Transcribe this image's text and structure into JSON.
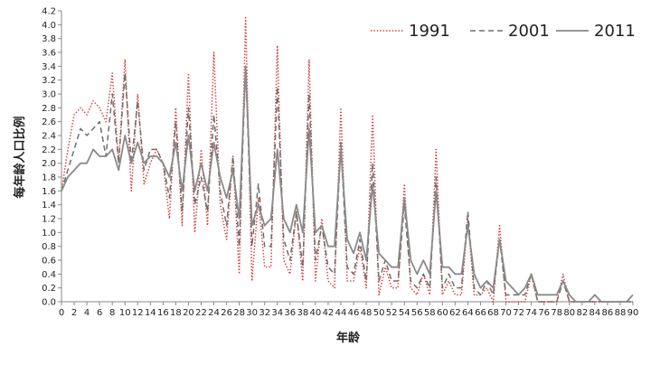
{
  "chart_data": {
    "type": "line",
    "title": "",
    "xlabel": "年龄",
    "ylabel": "每年龄人口比例",
    "xlim": [
      0,
      90
    ],
    "ylim": [
      0,
      4.2
    ],
    "x": [
      0,
      1,
      2,
      3,
      4,
      5,
      6,
      7,
      8,
      9,
      10,
      11,
      12,
      13,
      14,
      15,
      16,
      17,
      18,
      19,
      20,
      21,
      22,
      23,
      24,
      25,
      26,
      27,
      28,
      29,
      30,
      31,
      32,
      33,
      34,
      35,
      36,
      37,
      38,
      39,
      40,
      41,
      42,
      43,
      44,
      45,
      46,
      47,
      48,
      49,
      50,
      51,
      52,
      53,
      54,
      55,
      56,
      57,
      58,
      59,
      60,
      61,
      62,
      63,
      64,
      65,
      66,
      67,
      68,
      69,
      70,
      71,
      72,
      73,
      74,
      75,
      76,
      77,
      78,
      79,
      80,
      81,
      82,
      83,
      84,
      85,
      86,
      87,
      88,
      89,
      90
    ],
    "x_tick_labels": [
      "0",
      "2",
      "4",
      "6",
      "8",
      "10",
      "12",
      "14",
      "16",
      "18",
      "20",
      "22",
      "24",
      "26",
      "28",
      "30",
      "32",
      "34",
      "36",
      "38",
      "40",
      "42",
      "44",
      "46",
      "48",
      "50",
      "52",
      "54",
      "56",
      "58",
      "60",
      "62",
      "64",
      "66",
      "68",
      "70",
      "72",
      "74",
      "76",
      "78",
      "80",
      "82",
      "84",
      "86",
      "88",
      "90"
    ],
    "y_tick_labels": [
      "0.0",
      "0.2",
      "0.4",
      "0.6",
      "0.8",
      "1.0",
      "1.2",
      "1.4",
      "1.6",
      "1.8",
      "2.0",
      "2.2",
      "2.4",
      "2.6",
      "2.8",
      "3.0",
      "3.2",
      "3.4",
      "3.6",
      "3.8",
      "4.0",
      "4.2"
    ],
    "legend_position": "top-right",
    "series": [
      {
        "name": "1991",
        "color": "#d93a3a",
        "dash": "dotted",
        "values": [
          1.6,
          2.2,
          2.7,
          2.8,
          2.7,
          2.9,
          2.8,
          2.6,
          3.3,
          2.0,
          3.5,
          1.6,
          3.0,
          1.7,
          2.0,
          2.2,
          2.0,
          1.2,
          2.8,
          1.1,
          3.3,
          1.0,
          2.2,
          1.1,
          3.6,
          1.4,
          0.9,
          2.1,
          0.4,
          4.1,
          0.3,
          1.5,
          0.5,
          0.5,
          3.7,
          0.6,
          0.4,
          1.3,
          0.3,
          3.5,
          0.3,
          1.2,
          0.3,
          0.2,
          2.8,
          0.3,
          0.3,
          0.8,
          0.2,
          2.7,
          0.1,
          0.5,
          0.2,
          0.2,
          1.7,
          0.2,
          0.1,
          0.4,
          0.1,
          2.2,
          0.1,
          0.3,
          0.1,
          0.1,
          1.2,
          0.1,
          0.1,
          0.2,
          0.0,
          1.1,
          0.0,
          0.0,
          0.0,
          0.0,
          0.4,
          0.0,
          0.0,
          0.0,
          0.0,
          0.4,
          0.0,
          0.0,
          0.0,
          0.0,
          0.0,
          0.0,
          0.0,
          0.0,
          0.0,
          0.0,
          0.0
        ]
      },
      {
        "name": "2001",
        "color": "#6e6e6e",
        "dash": "dashed",
        "values": [
          1.6,
          1.9,
          2.2,
          2.5,
          2.4,
          2.5,
          2.6,
          2.1,
          3.0,
          2.0,
          3.3,
          2.0,
          2.9,
          1.9,
          2.2,
          2.2,
          2.0,
          1.5,
          2.6,
          1.3,
          2.8,
          1.4,
          1.8,
          1.3,
          2.7,
          1.6,
          1.1,
          2.1,
          0.8,
          3.4,
          0.8,
          1.7,
          0.8,
          0.8,
          3.1,
          0.9,
          0.6,
          1.3,
          0.5,
          3.0,
          0.6,
          1.1,
          0.5,
          0.4,
          2.3,
          0.5,
          0.4,
          0.9,
          0.3,
          2.0,
          0.3,
          0.6,
          0.3,
          0.3,
          1.4,
          0.3,
          0.2,
          0.4,
          0.2,
          1.8,
          0.2,
          0.4,
          0.2,
          0.2,
          1.3,
          0.2,
          0.1,
          0.3,
          0.1,
          0.9,
          0.1,
          0.1,
          0.1,
          0.1,
          0.4,
          0.0,
          0.0,
          0.0,
          0.0,
          0.3,
          0.0,
          0.0,
          0.0,
          0.0,
          0.0,
          0.0,
          0.0,
          0.0,
          0.0,
          0.0,
          0.0
        ]
      },
      {
        "name": "2011",
        "color": "#8a8a8a",
        "dash": "solid",
        "values": [
          1.6,
          1.8,
          1.9,
          2.0,
          2.0,
          2.2,
          2.1,
          2.1,
          2.2,
          1.9,
          2.4,
          2.0,
          2.3,
          2.0,
          2.1,
          2.1,
          2.0,
          1.8,
          2.3,
          1.6,
          2.4,
          1.6,
          2.0,
          1.6,
          2.3,
          1.8,
          1.5,
          1.9,
          1.2,
          3.4,
          1.1,
          1.4,
          1.1,
          1.2,
          2.2,
          1.2,
          1.0,
          1.4,
          1.0,
          2.5,
          1.0,
          1.1,
          0.8,
          0.8,
          2.2,
          0.9,
          0.7,
          1.0,
          0.6,
          1.7,
          0.7,
          0.6,
          0.5,
          0.5,
          1.5,
          0.6,
          0.4,
          0.6,
          0.4,
          1.6,
          0.5,
          0.5,
          0.4,
          0.4,
          1.1,
          0.4,
          0.2,
          0.3,
          0.2,
          0.9,
          0.3,
          0.2,
          0.1,
          0.2,
          0.4,
          0.1,
          0.1,
          0.1,
          0.1,
          0.3,
          0.1,
          0.0,
          0.0,
          0.0,
          0.1,
          0.0,
          0.0,
          0.0,
          0.0,
          0.0,
          0.1
        ]
      }
    ]
  }
}
